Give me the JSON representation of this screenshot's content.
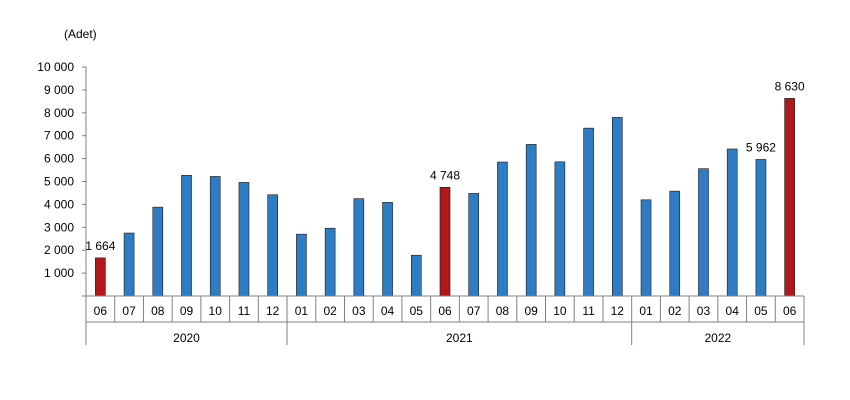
{
  "chart_data": {
    "type": "bar",
    "unit_label": "(Adet)",
    "ylim": [
      0,
      10000
    ],
    "yticks": [
      1000,
      2000,
      3000,
      4000,
      5000,
      6000,
      7000,
      8000,
      9000,
      10000
    ],
    "ytick_labels": [
      "1 000",
      "2 000",
      "3 000",
      "4 000",
      "5 000",
      "6 000",
      "7 000",
      "8 000",
      "9 000",
      "10 000"
    ],
    "categories": [
      "06",
      "07",
      "08",
      "09",
      "10",
      "11",
      "12",
      "01",
      "02",
      "03",
      "04",
      "05",
      "06",
      "07",
      "08",
      "09",
      "10",
      "11",
      "12",
      "01",
      "02",
      "03",
      "04",
      "05",
      "06"
    ],
    "values": [
      1664,
      2750,
      3880,
      5270,
      5220,
      4960,
      4420,
      2700,
      2960,
      4250,
      4090,
      1780,
      4748,
      4480,
      5850,
      6620,
      5860,
      7330,
      7800,
      4200,
      4580,
      5560,
      6420,
      5962,
      8630
    ],
    "highlight": [
      true,
      false,
      false,
      false,
      false,
      false,
      false,
      false,
      false,
      false,
      false,
      false,
      true,
      false,
      false,
      false,
      false,
      false,
      false,
      false,
      false,
      false,
      false,
      false,
      true
    ],
    "data_labels": [
      "1 664",
      "",
      "",
      "",
      "",
      "",
      "",
      "",
      "",
      "",
      "",
      "",
      "4 748",
      "",
      "",
      "",
      "",
      "",
      "",
      "",
      "",
      "",
      "",
      "5 962",
      "8 630"
    ],
    "years": [
      {
        "label": "2020",
        "start": 0,
        "end": 6
      },
      {
        "label": "2021",
        "start": 7,
        "end": 18
      },
      {
        "label": "2022",
        "start": 19,
        "end": 24
      }
    ],
    "colors": {
      "bar": "#2E7DC4",
      "highlight": "#B2171A",
      "axis": "#808080"
    },
    "grid": false,
    "legend": "none"
  }
}
